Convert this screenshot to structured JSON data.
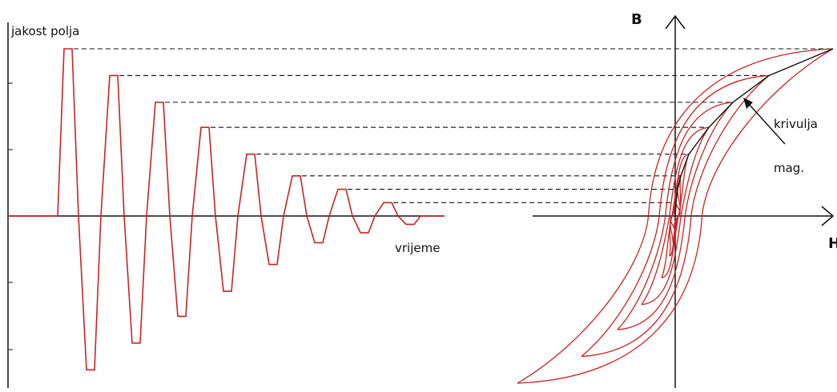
{
  "labels": {
    "y_axis_left": "jakost polja",
    "x_axis_left": "vrijeme",
    "y_axis_right": "B",
    "x_axis_right": "H",
    "curve_label_line1": "krivulja",
    "curve_label_line2": "mag."
  },
  "colors": {
    "signal": "#cc2222",
    "axis": "#111111",
    "dashed": "#111111",
    "magnetization_curve": "#111111"
  },
  "signal": {
    "peaks": [
      1.0,
      0.84,
      0.68,
      0.53,
      0.37,
      0.24,
      0.16,
      0.08
    ],
    "troughs": [
      -0.92,
      -0.76,
      -0.6,
      -0.45,
      -0.29,
      -0.16,
      -0.1,
      -0.05
    ]
  },
  "hysteresis": {
    "loop_count": 8
  }
}
